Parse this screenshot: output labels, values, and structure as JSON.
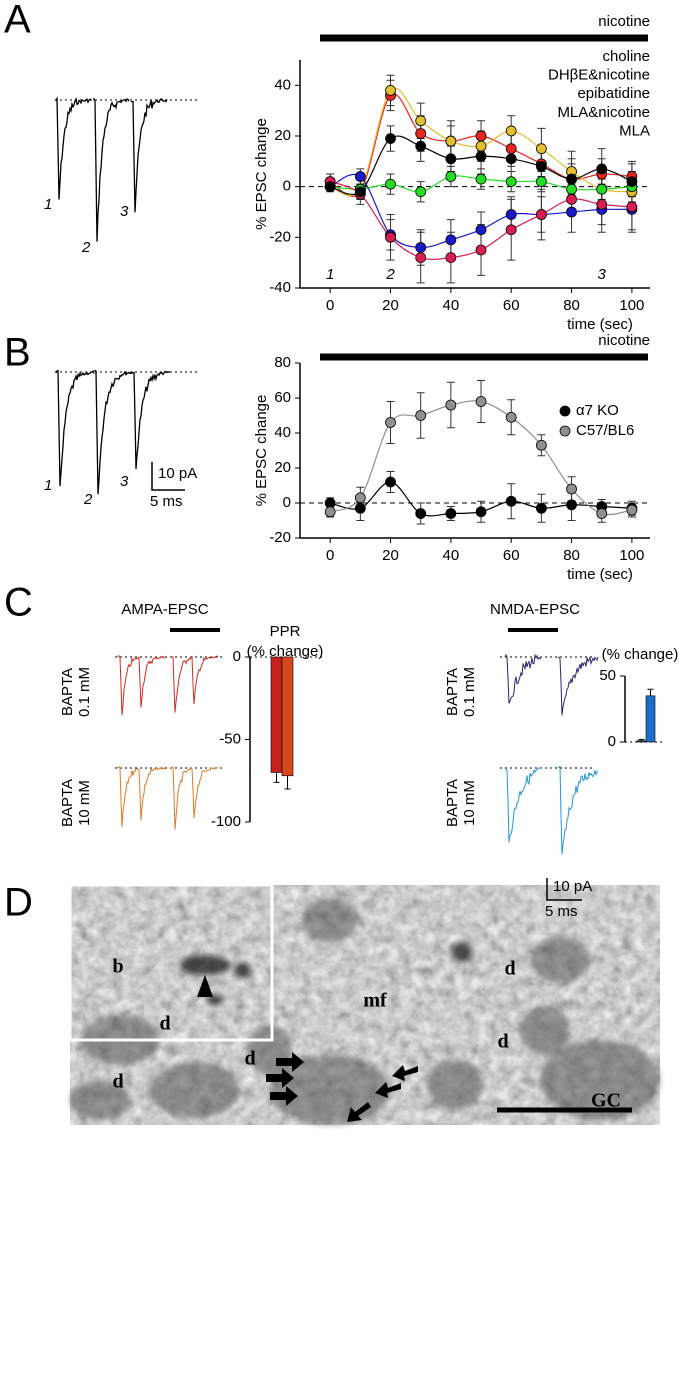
{
  "panel_labels": [
    "A",
    "B",
    "C",
    "D"
  ],
  "chart_data": [
    {
      "type": "line",
      "annotation": "nicotine",
      "ylabel": "% EPSC change",
      "xlabel": "time (sec)",
      "x": [
        0,
        10,
        20,
        30,
        40,
        50,
        60,
        70,
        80,
        90,
        100
      ],
      "xlim": [
        -10,
        106
      ],
      "xticks": [
        0,
        20,
        40,
        60,
        80,
        100
      ],
      "ylim": [
        -40,
        50
      ],
      "yticks": [
        -40,
        -20,
        0,
        20,
        40
      ],
      "phase_labels": {
        "x": [
          0,
          20,
          90
        ],
        "labels": [
          "1",
          "2",
          "3"
        ]
      },
      "legend": "top-right",
      "legend_markers": false,
      "series": [
        {
          "name": "choline",
          "color": "#e8261e",
          "values": [
            2,
            -2,
            36,
            21,
            18,
            20,
            15,
            9,
            3,
            5,
            4
          ],
          "errors": [
            3,
            3,
            6,
            7,
            8,
            6,
            7,
            5,
            6,
            6,
            5
          ]
        },
        {
          "name": "DHβE&nicotine",
          "color": "#e2bf2c",
          "values": [
            0,
            -1,
            38,
            26,
            18,
            16,
            22,
            15,
            6,
            -1,
            -2
          ],
          "errors": [
            2,
            4,
            6,
            7,
            6,
            6,
            6,
            8,
            8,
            8,
            8
          ]
        },
        {
          "name": "epibatidine",
          "color": "#22dd22",
          "values": [
            0,
            -1,
            1,
            -2,
            4,
            3,
            2,
            2,
            -1,
            -1,
            0
          ],
          "errors": [
            1,
            2,
            4,
            4,
            4,
            4,
            4,
            4,
            4,
            4,
            4
          ]
        },
        {
          "name": "MLA&nicotine",
          "color": "#1a1acc",
          "values": [
            0,
            4,
            -19,
            -24,
            -21,
            -17,
            -11,
            -11,
            -10,
            -9,
            -9
          ],
          "errors": [
            1,
            3,
            6,
            7,
            8,
            7,
            7,
            7,
            8,
            9,
            9
          ]
        },
        {
          "name": "MLA",
          "color": "#d81e50",
          "values": [
            2,
            -3,
            -20,
            -28,
            -28,
            -25,
            -17,
            -11,
            -5,
            -7,
            -8
          ],
          "errors": [
            3,
            4,
            9,
            10,
            10,
            10,
            12,
            10,
            6,
            8,
            9
          ]
        },
        {
          "color": "#000000",
          "values": [
            0,
            -2,
            19,
            16,
            11,
            12,
            11,
            8,
            3,
            7,
            2
          ],
          "errors": [
            1,
            2,
            5,
            6,
            5,
            7,
            5,
            6,
            8,
            8,
            8
          ]
        }
      ]
    },
    {
      "type": "line",
      "annotation": "nicotine",
      "ylabel": "% EPSC change",
      "xlabel": "time (sec)",
      "x": [
        0,
        10,
        20,
        30,
        40,
        50,
        60,
        70,
        80,
        90,
        100
      ],
      "xlim": [
        -10,
        106
      ],
      "xticks": [
        0,
        20,
        40,
        60,
        80,
        100
      ],
      "ylim": [
        -20,
        80
      ],
      "yticks": [
        -20,
        0,
        20,
        40,
        60,
        80
      ],
      "legend": "top-right",
      "legend_markers": true,
      "series": [
        {
          "name": "α7 KO",
          "color": "#000000",
          "values": [
            0,
            -3,
            12,
            -6,
            -6,
            -5,
            1,
            -3,
            -1,
            -2,
            -3
          ],
          "errors": [
            3,
            7,
            6,
            6,
            4,
            6,
            10,
            8,
            9,
            4,
            4
          ]
        },
        {
          "name": "C57/BL6",
          "color": "#909090",
          "values": [
            -5,
            3,
            46,
            50,
            56,
            58,
            49,
            33,
            8,
            -6,
            -4
          ],
          "errors": [
            3,
            6,
            12,
            13,
            13,
            12,
            10,
            6,
            7,
            5,
            4
          ]
        }
      ]
    },
    {
      "type": "bar",
      "title": "PPR",
      "subtitle": "(% change)",
      "categories": [
        null,
        null
      ],
      "values": [
        -70,
        -72
      ],
      "errors": [
        6,
        8
      ],
      "colors": [
        "#c8201a",
        "#d8481e"
      ],
      "ylim": [
        -100,
        0
      ],
      "yticks": [
        -100,
        -50,
        0
      ]
    },
    {
      "type": "bar",
      "title": "(% change)",
      "categories": [
        null,
        null
      ],
      "values": [
        1,
        35
      ],
      "errors": [
        1,
        5
      ],
      "colors": [
        "#22206a",
        "#1c6cc8"
      ],
      "ylim": [
        0,
        50
      ],
      "yticks": [
        0,
        50
      ]
    }
  ],
  "traces": {
    "trace_numbers": [
      "1",
      "2",
      "3"
    ],
    "scale_current": "10 pA",
    "scale_time": "5 ms",
    "ampa_title": "AMPA-EPSC",
    "nmda_title": "NMDA-EPSC",
    "conditions": [
      [
        "BAPTA",
        "0.1 mM"
      ],
      [
        "BAPTA",
        "10 mM"
      ]
    ]
  },
  "micrograph": {
    "labels": [
      "b",
      "d",
      "d",
      "mf",
      "d",
      "d",
      "d",
      "GC"
    ]
  }
}
